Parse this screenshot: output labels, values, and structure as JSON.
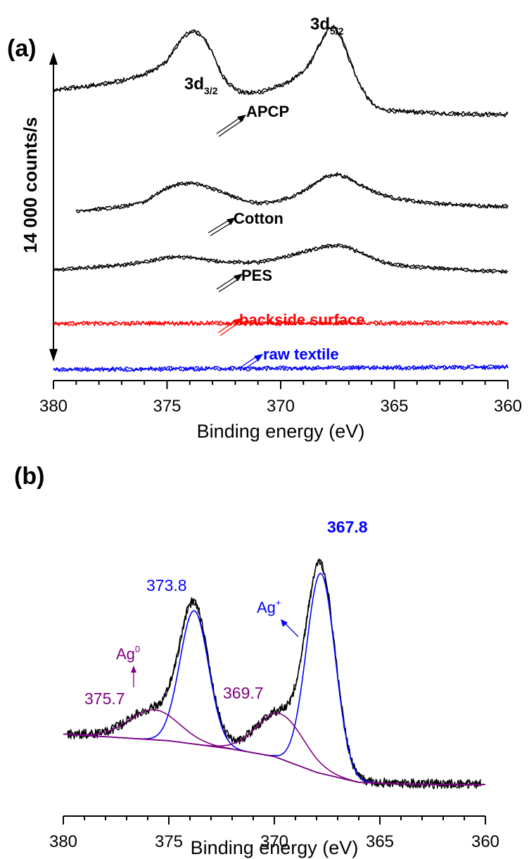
{
  "chart_data": [
    {
      "panel_label": "(a)",
      "type": "line",
      "xlabel": "Binding energy (eV)",
      "ylabel": "14 000 counts/s",
      "xlim": [
        380,
        360
      ],
      "x_reversed": true,
      "x_ticks": [
        380,
        375,
        370,
        365,
        360
      ],
      "y_unit": "counts/s (offset, stacked)",
      "peak_labels": [
        {
          "base": "3d",
          "sub": "3/2",
          "x": 373.7
        },
        {
          "base": "3d",
          "sub": "5/2",
          "x": 367.8
        }
      ],
      "series": [
        {
          "name": "APCP",
          "color": "#000000",
          "offset": 21100,
          "x": [
            380,
            379,
            378,
            377,
            376,
            375.5,
            375,
            374.6,
            374.2,
            373.8,
            373.4,
            373.0,
            372.6,
            372.2,
            371.8,
            371.4,
            371.0,
            370.5,
            370,
            369.5,
            369,
            368.6,
            368.2,
            367.9,
            367.6,
            367.3,
            367.0,
            366.6,
            366.2,
            365.8,
            365.4,
            365,
            364,
            363,
            362,
            361,
            360
          ],
          "y": [
            21220,
            21440,
            21660,
            22000,
            22500,
            22900,
            23600,
            24700,
            25650,
            25900,
            25500,
            24200,
            22500,
            21600,
            21100,
            21000,
            21060,
            21280,
            21620,
            22060,
            22700,
            23700,
            25200,
            26100,
            26250,
            25300,
            23800,
            22000,
            20700,
            19900,
            19650,
            19600,
            19500,
            19420,
            19360,
            19310,
            19300
          ]
        },
        {
          "name": "Cotton",
          "color": "#000000",
          "offset": 11200,
          "x": [
            379,
            378,
            377,
            376,
            375.5,
            375,
            374.5,
            374,
            373.5,
            373,
            372.5,
            372,
            371.5,
            371,
            370.5,
            370,
            369.5,
            369,
            368.5,
            368,
            367.5,
            367,
            366.5,
            366,
            365.5,
            365,
            364,
            363,
            362,
            361,
            360
          ],
          "y": [
            11600,
            11780,
            11950,
            12350,
            12900,
            13450,
            13750,
            13850,
            13700,
            13400,
            13050,
            12700,
            12400,
            12250,
            12280,
            12480,
            12780,
            13200,
            13800,
            14350,
            14550,
            14200,
            13700,
            13250,
            12900,
            12650,
            12360,
            12200,
            12090,
            12020,
            12000
          ]
        },
        {
          "name": "PES",
          "color": "#000000",
          "offset": 6700,
          "x": [
            380,
            379,
            378,
            377,
            376,
            375.5,
            375,
            374.5,
            374,
            373.5,
            373,
            372.5,
            372,
            371.5,
            371,
            370.5,
            370,
            369.5,
            369,
            368.5,
            368,
            367.5,
            367,
            366.5,
            366,
            365.5,
            365,
            364,
            363,
            362,
            361,
            360
          ],
          "y": [
            6900,
            7050,
            7180,
            7320,
            7550,
            7750,
            7900,
            7950,
            7920,
            7820,
            7650,
            7560,
            7540,
            7520,
            7540,
            7700,
            7900,
            8100,
            8350,
            8600,
            8800,
            8900,
            8700,
            8300,
            7900,
            7550,
            7350,
            7150,
            7050,
            6950,
            6850,
            6780
          ]
        },
        {
          "name": "backside surface",
          "color": "#ff0000",
          "offset": 2600,
          "x": [
            380,
            375,
            370,
            365,
            360
          ],
          "y": [
            2650,
            2680,
            2690,
            2700,
            2720
          ]
        },
        {
          "name": "raw textile",
          "color": "#0000ff",
          "offset": 0,
          "x": [
            380,
            375,
            370,
            365,
            360
          ],
          "y": [
            -1000,
            -950,
            -900,
            -850,
            -800
          ]
        }
      ]
    },
    {
      "panel_label": "(b)",
      "type": "line",
      "xlabel": "Binding energy (eV)",
      "xlim": [
        380,
        360
      ],
      "x_reversed": true,
      "x_ticks": [
        380,
        375,
        370,
        365,
        360
      ],
      "peak_annotations": [
        {
          "text": "373.8",
          "color": "#0000ff",
          "x": 373.8
        },
        {
          "text": "367.8",
          "color": "#0000ff",
          "x": 367.8
        },
        {
          "text": "375.7",
          "color": "#800080",
          "x": 375.7
        },
        {
          "text": "369.7",
          "color": "#800080",
          "x": 369.7
        }
      ],
      "species_labels": [
        {
          "base": "Ag",
          "sup": "0",
          "color": "#800080"
        },
        {
          "base": "Ag",
          "sup": "+",
          "color": "#0000ff"
        }
      ],
      "baseline": {
        "x": [
          380,
          375,
          372,
          370,
          368,
          366,
          364,
          362,
          360
        ],
        "y": [
          0,
          -400,
          -900,
          -1350,
          -2300,
          -2900,
          -3000,
          -3020,
          -3030
        ]
      },
      "components": [
        {
          "label": "Ag+ 3d3/2",
          "center": 373.8,
          "height": 8000,
          "fwhm": 1.6,
          "color": "#0000ff"
        },
        {
          "label": "Ag+ 3d5/2",
          "center": 367.8,
          "height": 12000,
          "fwhm": 1.6,
          "color": "#0000ff"
        },
        {
          "label": "Ag0 3d3/2",
          "center": 375.7,
          "height": 1800,
          "fwhm": 2.8,
          "color": "#800080"
        },
        {
          "label": "Ag0 3d5/2",
          "center": 369.7,
          "height": 2700,
          "fwhm": 2.6,
          "color": "#800080"
        }
      ],
      "raw_noise_amplitude": 260,
      "ylim": [
        -4500,
        14500
      ]
    }
  ],
  "panel_a": {
    "label": "(a)",
    "ylabel": "14 000 counts/s",
    "xlabel": "Binding energy (eV)",
    "peak1_base": "3d",
    "peak1_sub": "3/2",
    "peak2_base": "3d",
    "peak2_sub": "5/2",
    "label_apcp": "APCP",
    "label_cotton": "Cotton",
    "label_pes": "PES",
    "label_backside": "backside surface",
    "label_raw": "raw textile",
    "ticks": [
      "380",
      "375",
      "370",
      "365",
      "360"
    ]
  },
  "panel_b": {
    "label": "(b)",
    "xlabel": "Binding energy (eV)",
    "ann_3738": "373.8",
    "ann_3678": "367.8",
    "ann_3757": "375.7",
    "ann_3697": "369.7",
    "ag0_base": "Ag",
    "ag0_sup": "0",
    "agp_base": "Ag",
    "agp_sup": "+",
    "ticks": [
      "380",
      "375",
      "370",
      "365",
      "360"
    ]
  },
  "colors": {
    "black": "#000000",
    "red": "#ff0000",
    "blue": "#0000ff",
    "purple": "#800080"
  }
}
